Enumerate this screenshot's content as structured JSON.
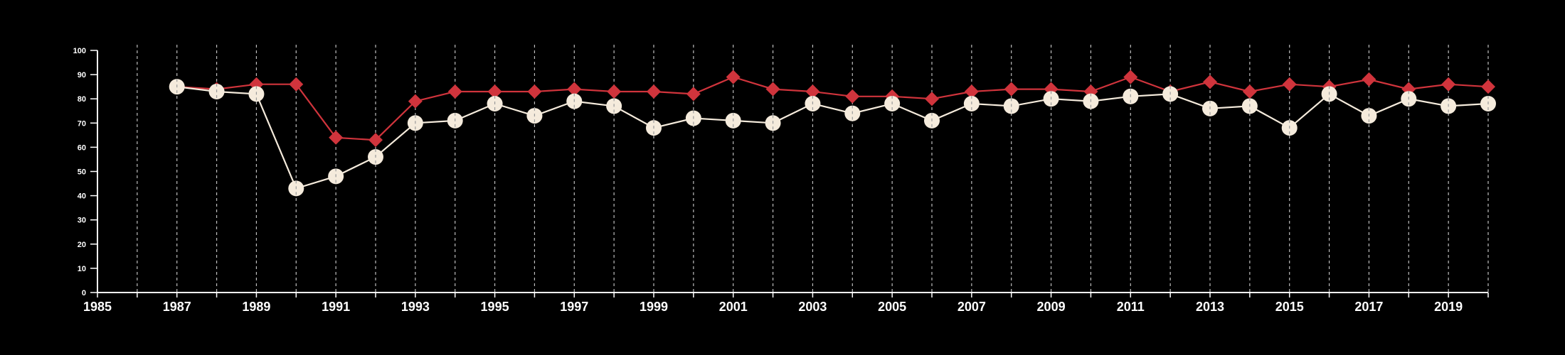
{
  "chart_data": {
    "type": "line",
    "title": "",
    "xlabel": "",
    "ylabel": "",
    "xlim": [
      1985,
      2020
    ],
    "ylim": [
      0,
      100
    ],
    "x_ticks": [
      1985,
      1987,
      1989,
      1991,
      1993,
      1995,
      1997,
      1999,
      2001,
      2003,
      2005,
      2007,
      2009,
      2011,
      2013,
      2015,
      2017,
      2019
    ],
    "y_ticks": [
      0,
      10,
      20,
      30,
      40,
      50,
      60,
      70,
      80,
      90,
      100
    ],
    "grid": "vertical dashed lines at each year",
    "x": [
      1987,
      1988,
      1989,
      1990,
      1991,
      1992,
      1993,
      1994,
      1995,
      1996,
      1997,
      1998,
      1999,
      2000,
      2001,
      2002,
      2003,
      2004,
      2005,
      2006,
      2007,
      2008,
      2009,
      2010,
      2011,
      2012,
      2013,
      2014,
      2015,
      2016,
      2017,
      2018,
      2019,
      2020
    ],
    "series": [
      {
        "marker": "diamond",
        "color": "#d0343c",
        "values": [
          85,
          84,
          86,
          86,
          64,
          63,
          79,
          83,
          83,
          83,
          84,
          83,
          83,
          82,
          89,
          84,
          83,
          81,
          81,
          80,
          83,
          84,
          84,
          83,
          89,
          83,
          87,
          83,
          86,
          85,
          88,
          84,
          86,
          85
        ]
      },
      {
        "marker": "circle",
        "color": "#f5ebdc",
        "values": [
          85,
          83,
          82,
          43,
          48,
          56,
          70,
          71,
          78,
          73,
          79,
          77,
          68,
          72,
          71,
          70,
          78,
          74,
          78,
          71,
          78,
          77,
          80,
          79,
          81,
          82,
          76,
          77,
          68,
          82,
          73,
          80,
          77,
          78
        ]
      }
    ]
  }
}
